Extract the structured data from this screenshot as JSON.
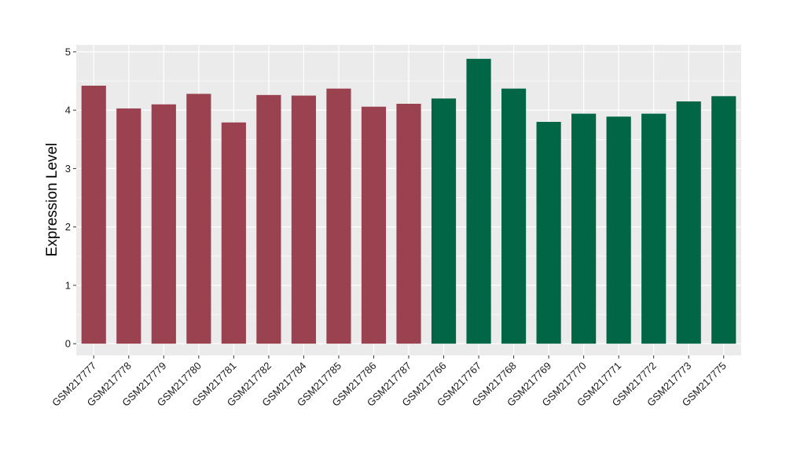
{
  "chart_data": {
    "type": "bar",
    "title": "",
    "xlabel": "",
    "ylabel": "Expression Level",
    "ylim": [
      -0.2,
      5.12
    ],
    "yticks": [
      0,
      1,
      2,
      3,
      4,
      5
    ],
    "grid": true,
    "categories": [
      "GSM217777",
      "GSM217778",
      "GSM217779",
      "GSM217780",
      "GSM217781",
      "GSM217782",
      "GSM217784",
      "GSM217785",
      "GSM217786",
      "GSM217787",
      "GSM217766",
      "GSM217767",
      "GSM217768",
      "GSM217769",
      "GSM217770",
      "GSM217771",
      "GSM217772",
      "GSM217773",
      "GSM217775"
    ],
    "values": [
      4.42,
      4.03,
      4.1,
      4.28,
      3.79,
      4.26,
      4.25,
      4.37,
      4.06,
      4.11,
      4.2,
      4.88,
      4.37,
      3.8,
      3.94,
      3.89,
      3.94,
      4.15,
      4.24
    ],
    "bar_colors": [
      "#9B4250",
      "#9B4250",
      "#9B4250",
      "#9B4250",
      "#9B4250",
      "#9B4250",
      "#9B4250",
      "#9B4250",
      "#9B4250",
      "#9B4250",
      "#006645",
      "#006645",
      "#006645",
      "#006645",
      "#006645",
      "#006645",
      "#006645",
      "#006645",
      "#006645"
    ],
    "panel_background": "#EBEBEB",
    "grid_color": "#FFFFFF"
  }
}
